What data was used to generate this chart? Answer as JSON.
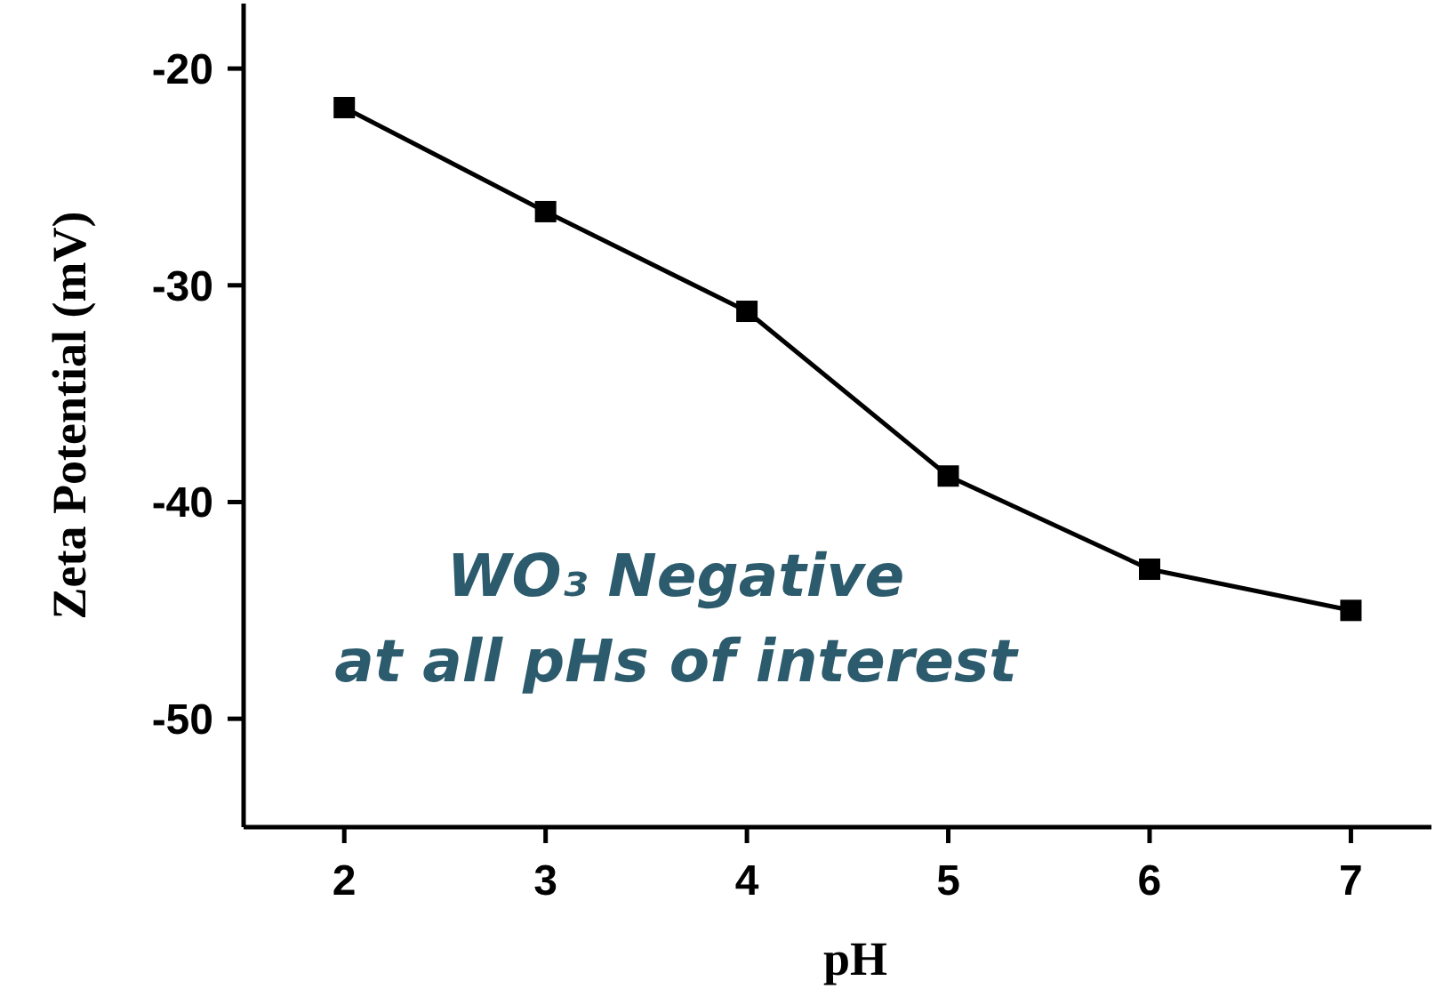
{
  "chart_data": {
    "type": "line",
    "xlabel": "pH",
    "ylabel": "Zeta Potential (mV)",
    "x": [
      2,
      3,
      4,
      5,
      6,
      7
    ],
    "series": [
      {
        "color": "#000000",
        "values": [
          -21.8,
          -26.6,
          -31.2,
          -38.8,
          -43.1,
          -45.0
        ]
      }
    ],
    "xlim": [
      1.5,
      7.4
    ],
    "xticks": [
      2,
      3,
      4,
      5,
      6,
      7
    ],
    "ylim": [
      -55,
      -17
    ],
    "yticks": [
      -20,
      -30,
      -40,
      -50
    ],
    "marker": "square",
    "line_style": "solid",
    "annotations": [
      "WO₃ Negative\nat all pHs of interest"
    ]
  }
}
